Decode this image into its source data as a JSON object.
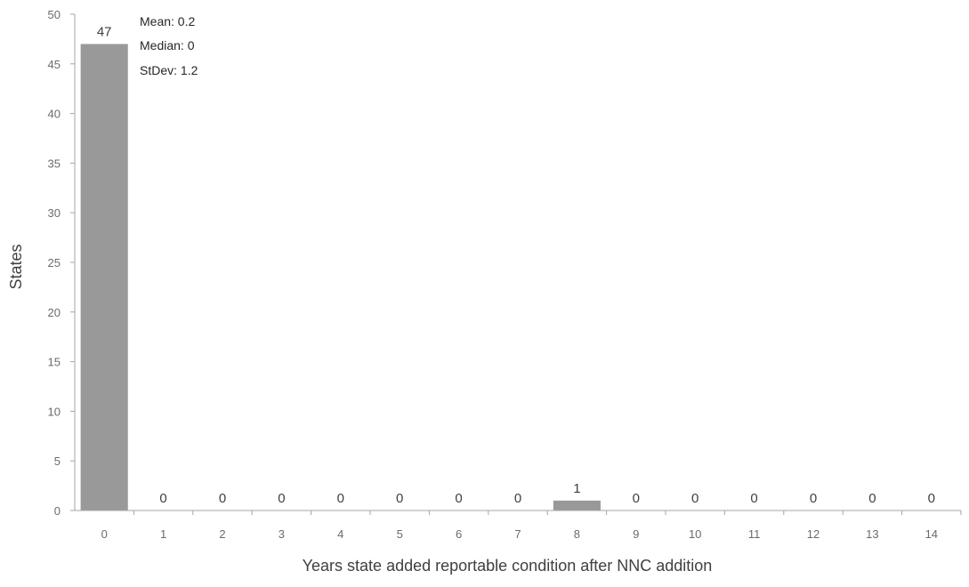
{
  "chart_data": {
    "type": "bar",
    "categories": [
      "0",
      "1",
      "2",
      "3",
      "4",
      "5",
      "6",
      "7",
      "8",
      "9",
      "10",
      "11",
      "12",
      "13",
      "14"
    ],
    "values": [
      47,
      0,
      0,
      0,
      0,
      0,
      0,
      0,
      1,
      0,
      0,
      0,
      0,
      0,
      0
    ],
    "data_labels": [
      "47",
      "0",
      "0",
      "0",
      "0",
      "0",
      "0",
      "0",
      "1",
      "0",
      "0",
      "0",
      "0",
      "0",
      "0"
    ],
    "y_ticks": [
      "0",
      "5",
      "10",
      "15",
      "20",
      "25",
      "30",
      "35",
      "40",
      "45",
      "50"
    ],
    "xlabel": "Years state added reportable condition after NNC addition",
    "ylabel": "States",
    "ylim": [
      0,
      50
    ],
    "grid": false,
    "legend": "none",
    "bar_color": "#999999",
    "annotations": [
      "Mean: 0.2",
      "Median: 0",
      "StDev: 1.2"
    ]
  }
}
